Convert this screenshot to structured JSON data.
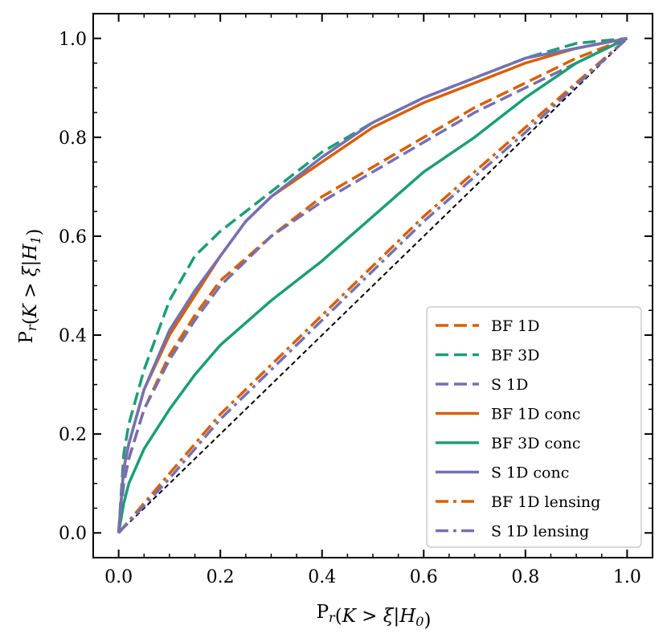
{
  "chart_data": {
    "type": "line",
    "xlabel": "P_r(K > ξ|H_0)",
    "ylabel": "P_r(K > ξ|H_1)",
    "xlim": [
      -0.05,
      1.05
    ],
    "ylim": [
      -0.05,
      1.05
    ],
    "xticks": [
      "0.0",
      "0.2",
      "0.4",
      "0.6",
      "0.8",
      "1.0"
    ],
    "yticks": [
      "0.0",
      "0.2",
      "0.4",
      "0.6",
      "0.8",
      "1.0"
    ],
    "grid": false,
    "legend_position": "lower-right",
    "reference_line": {
      "x": [
        0,
        1
      ],
      "y": [
        0,
        1
      ],
      "color": "#000000",
      "style": "dashed"
    },
    "series": [
      {
        "name": "BF 1D",
        "color": "#d95f02",
        "style": "dashed",
        "x": [
          0,
          0.01,
          0.02,
          0.05,
          0.1,
          0.15,
          0.2,
          0.3,
          0.4,
          0.5,
          0.6,
          0.7,
          0.8,
          0.9,
          1.0
        ],
        "y": [
          0,
          0.1,
          0.15,
          0.25,
          0.36,
          0.44,
          0.51,
          0.6,
          0.68,
          0.74,
          0.8,
          0.86,
          0.91,
          0.96,
          1.0
        ]
      },
      {
        "name": "BF 3D",
        "color": "#1b9e77",
        "style": "dashed",
        "x": [
          0,
          0.01,
          0.02,
          0.05,
          0.1,
          0.15,
          0.2,
          0.25,
          0.3,
          0.4,
          0.5,
          0.6,
          0.7,
          0.8,
          0.9,
          1.0
        ],
        "y": [
          0,
          0.16,
          0.22,
          0.33,
          0.47,
          0.56,
          0.61,
          0.65,
          0.69,
          0.77,
          0.83,
          0.88,
          0.92,
          0.96,
          0.99,
          1.0
        ]
      },
      {
        "name": "S 1D",
        "color": "#7570b3",
        "style": "dashed",
        "x": [
          0,
          0.01,
          0.02,
          0.05,
          0.1,
          0.15,
          0.2,
          0.3,
          0.4,
          0.5,
          0.6,
          0.7,
          0.8,
          0.9,
          1.0
        ],
        "y": [
          0,
          0.1,
          0.15,
          0.25,
          0.35,
          0.43,
          0.5,
          0.6,
          0.67,
          0.73,
          0.79,
          0.85,
          0.9,
          0.95,
          1.0
        ]
      },
      {
        "name": "BF 1D conc",
        "color": "#d95f02",
        "style": "solid",
        "x": [
          0,
          0.01,
          0.02,
          0.05,
          0.1,
          0.15,
          0.2,
          0.25,
          0.3,
          0.4,
          0.5,
          0.6,
          0.7,
          0.8,
          0.9,
          1.0
        ],
        "y": [
          0,
          0.13,
          0.18,
          0.29,
          0.4,
          0.48,
          0.56,
          0.63,
          0.68,
          0.75,
          0.82,
          0.87,
          0.91,
          0.95,
          0.98,
          1.0
        ]
      },
      {
        "name": "BF 3D conc",
        "color": "#1b9e77",
        "style": "solid",
        "x": [
          0,
          0.01,
          0.02,
          0.05,
          0.1,
          0.15,
          0.2,
          0.3,
          0.4,
          0.5,
          0.6,
          0.7,
          0.8,
          0.9,
          1.0
        ],
        "y": [
          0,
          0.06,
          0.1,
          0.17,
          0.25,
          0.32,
          0.38,
          0.47,
          0.55,
          0.64,
          0.73,
          0.8,
          0.88,
          0.95,
          1.0
        ]
      },
      {
        "name": "S 1D conc",
        "color": "#7570b3",
        "style": "solid",
        "x": [
          0,
          0.01,
          0.02,
          0.05,
          0.1,
          0.15,
          0.2,
          0.25,
          0.3,
          0.4,
          0.5,
          0.6,
          0.7,
          0.8,
          0.9,
          1.0
        ],
        "y": [
          0,
          0.13,
          0.18,
          0.29,
          0.41,
          0.49,
          0.56,
          0.63,
          0.68,
          0.76,
          0.83,
          0.88,
          0.92,
          0.96,
          0.98,
          1.0
        ]
      },
      {
        "name": "BF 1D lensing",
        "color": "#d95f02",
        "style": "dashdot",
        "x": [
          0,
          0.05,
          0.1,
          0.15,
          0.2,
          0.3,
          0.4,
          0.5,
          0.6,
          0.7,
          0.8,
          0.9,
          1.0
        ],
        "y": [
          0,
          0.06,
          0.12,
          0.18,
          0.24,
          0.34,
          0.44,
          0.54,
          0.64,
          0.73,
          0.82,
          0.91,
          1.0
        ]
      },
      {
        "name": "S 1D lensing",
        "color": "#7570b3",
        "style": "dashdot",
        "x": [
          0,
          0.05,
          0.1,
          0.15,
          0.2,
          0.3,
          0.4,
          0.5,
          0.6,
          0.7,
          0.8,
          0.9,
          1.0
        ],
        "y": [
          0,
          0.055,
          0.11,
          0.17,
          0.23,
          0.33,
          0.43,
          0.53,
          0.63,
          0.72,
          0.81,
          0.905,
          1.0
        ]
      }
    ]
  }
}
